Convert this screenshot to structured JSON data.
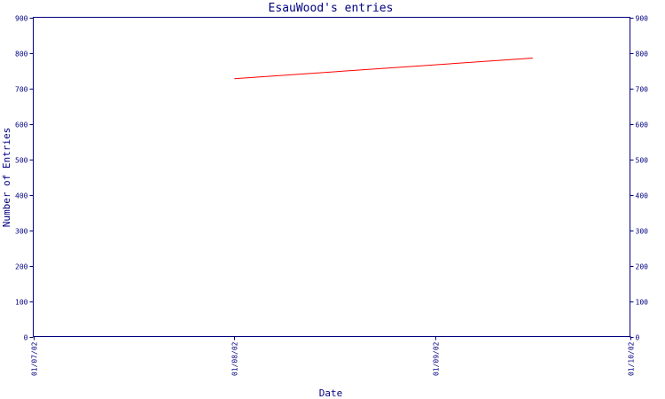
{
  "chart_data": {
    "type": "line",
    "title": "EsauWood's entries",
    "xlabel": "Date",
    "ylabel": "Number of Entries",
    "xlim": [
      "2002-07-01",
      "2002-10-01"
    ],
    "ylim": [
      0,
      900
    ],
    "x_ticks": [
      "01/07/02",
      "01/08/02",
      "01/09/02",
      "01/10/02"
    ],
    "y_ticks": [
      0,
      100,
      200,
      300,
      400,
      500,
      600,
      700,
      800,
      900
    ],
    "grid": false,
    "series": [
      {
        "color": "#ff0000",
        "points": [
          {
            "x": "2002-08-01",
            "y": 727
          },
          {
            "x": "2002-09-16",
            "y": 785
          }
        ]
      }
    ]
  }
}
